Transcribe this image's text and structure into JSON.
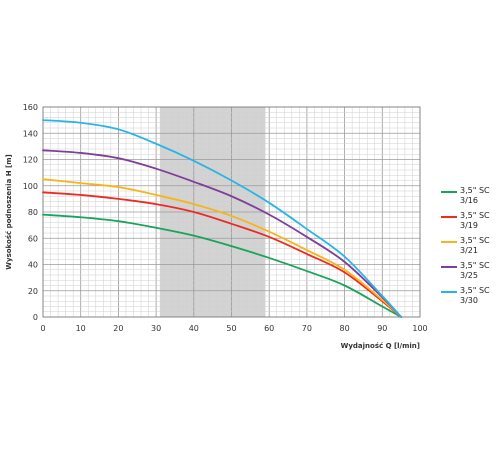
{
  "chart_data": {
    "type": "line",
    "xlabel": "Wydajność Q [l/min]",
    "ylabel": "Wysokość podnoszenia H [m]",
    "xlim": [
      0,
      100
    ],
    "ylim": [
      0,
      160
    ],
    "xticks": [
      "0",
      "10",
      "20",
      "30",
      "40",
      "50",
      "60",
      "70",
      "80",
      "90",
      "100"
    ],
    "yticks": [
      "0",
      "20",
      "40",
      "60",
      "80",
      "100",
      "120",
      "140",
      "160"
    ],
    "grid": true,
    "shaded_range": [
      31,
      59
    ],
    "legend_position": "right",
    "series": [
      {
        "name": "3,5\" SC 3/16",
        "color": "#1aa35a",
        "x": [
          0,
          10,
          20,
          30,
          40,
          50,
          60,
          70,
          80,
          90,
          95
        ],
        "y": [
          78,
          76,
          73,
          68,
          62,
          54,
          45,
          35,
          24,
          8,
          0
        ]
      },
      {
        "name": "3,5\" SC 3/19",
        "color": "#ee2a24",
        "x": [
          0,
          10,
          20,
          30,
          40,
          50,
          60,
          70,
          80,
          90,
          95
        ],
        "y": [
          95,
          93,
          90,
          86,
          80,
          71,
          61,
          48,
          34,
          12,
          0
        ]
      },
      {
        "name": "3,5\" SC 3/21",
        "color": "#f7b519",
        "x": [
          0,
          10,
          20,
          30,
          40,
          50,
          60,
          70,
          80,
          90,
          95
        ],
        "y": [
          105,
          102,
          99,
          93,
          86,
          77,
          65,
          51,
          36,
          13,
          0
        ]
      },
      {
        "name": "3,5\" SC 3/25",
        "color": "#7d3f98",
        "x": [
          0,
          10,
          20,
          30,
          40,
          50,
          60,
          70,
          80,
          90,
          95
        ],
        "y": [
          127,
          125,
          121,
          113,
          103,
          92,
          78,
          61,
          42,
          15,
          0
        ]
      },
      {
        "name": "3,5\" SC 3/30",
        "color": "#27b5e8",
        "x": [
          0,
          10,
          20,
          30,
          40,
          50,
          60,
          70,
          80,
          90,
          95
        ],
        "y": [
          150,
          148,
          143,
          132,
          119,
          104,
          87,
          67,
          46,
          16,
          0
        ]
      }
    ]
  }
}
